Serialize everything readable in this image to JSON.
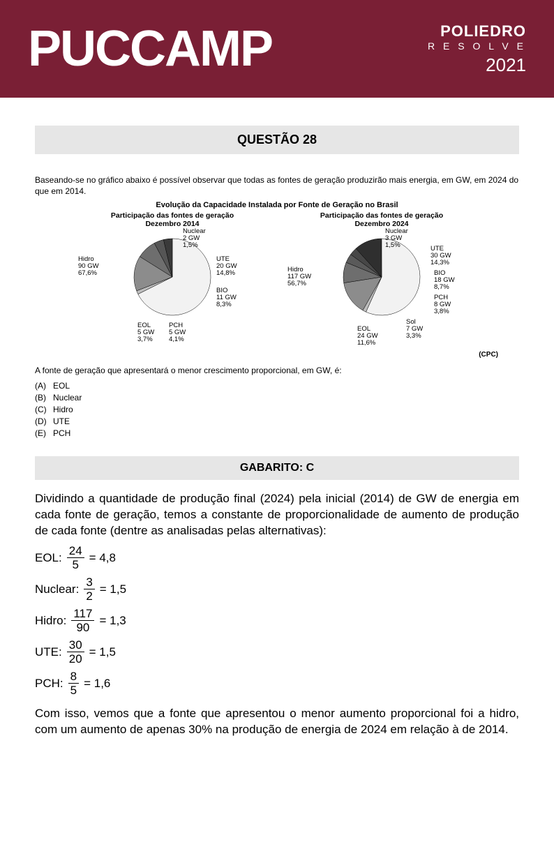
{
  "header": {
    "main_logo": "PUCCAMP",
    "side_top": "POLIEDRO",
    "side_mid": "R E S O L V E",
    "side_year": "2021",
    "bg_color": "#7a1f35"
  },
  "question": {
    "bar_label": "QUESTÃO 28",
    "intro": "Baseando-se no gráfico abaixo é possível observar que todas as fontes de geração produzirão mais energia, em GW, em 2024 do que em 2014.",
    "chart_main_title": "Evolução da Capacidade Instalada por Fonte de Geração no Brasil",
    "sub_question": "A fonte de geração que apresentará o menor crescimento proporcional, em GW, é:",
    "source": "(CPC)",
    "options": [
      {
        "letter": "(A)",
        "text": "EOL"
      },
      {
        "letter": "(B)",
        "text": "Nuclear"
      },
      {
        "letter": "(C)",
        "text": "Hidro"
      },
      {
        "letter": "(D)",
        "text": "UTE"
      },
      {
        "letter": "(E)",
        "text": "PCH"
      }
    ]
  },
  "chart_2014": {
    "subtitle_l1": "Participação das fontes de geração",
    "subtitle_l2": "Dezembro 2014",
    "slices": [
      {
        "name": "Hidro",
        "gw": 90,
        "pct": 67.6,
        "color": "#f2f2f2"
      },
      {
        "name": "Nuclear",
        "gw": 2,
        "pct": 1.5,
        "color": "#bdbdbd"
      },
      {
        "name": "UTE",
        "gw": 20,
        "pct": 14.8,
        "color": "#8c8c8c"
      },
      {
        "name": "BIO",
        "gw": 11,
        "pct": 8.3,
        "color": "#6e6e6e"
      },
      {
        "name": "PCH",
        "gw": 5,
        "pct": 4.1,
        "color": "#555555"
      },
      {
        "name": "EOL",
        "gw": 5,
        "pct": 3.7,
        "color": "#3a3a3a"
      }
    ],
    "labels": {
      "hidro": "Hidro\n90 GW\n67,6%",
      "nuclear": "Nuclear\n2 GW\n1,5%",
      "ute": "UTE\n20 GW\n14,8%",
      "bio": "BIO\n11 GW\n8,3%",
      "pch": "PCH\n5 GW\n4,1%",
      "eol": "EOL\n5 GW\n3,7%"
    }
  },
  "chart_2024": {
    "subtitle_l1": "Participação das fontes de geração",
    "subtitle_l2": "Dezembro 2024",
    "slices": [
      {
        "name": "Hidro",
        "gw": 117,
        "pct": 56.7,
        "color": "#f2f2f2"
      },
      {
        "name": "Nuclear",
        "gw": 3,
        "pct": 1.5,
        "color": "#bdbdbd"
      },
      {
        "name": "UTE",
        "gw": 30,
        "pct": 14.3,
        "color": "#8c8c8c"
      },
      {
        "name": "BIO",
        "gw": 18,
        "pct": 8.7,
        "color": "#6e6e6e"
      },
      {
        "name": "PCH",
        "gw": 8,
        "pct": 3.8,
        "color": "#5a5a5a"
      },
      {
        "name": "Sol",
        "gw": 7,
        "pct": 3.3,
        "color": "#474747"
      },
      {
        "name": "EOL",
        "gw": 24,
        "pct": 11.6,
        "color": "#2f2f2f"
      }
    ],
    "labels": {
      "hidro": "Hidro\n117 GW\n56,7%",
      "nuclear": "Nuclear\n3 GW\n1,5%",
      "ute": "UTE\n30 GW\n14,3%",
      "bio": "BIO\n18 GW\n8,7%",
      "pch": "PCH\n8 GW\n3,8%",
      "sol": "Sol\n7 GW\n3,3%",
      "eol": "EOL\n24 GW\n11,6%"
    }
  },
  "answer": {
    "bar_label": "GABARITO: C",
    "para1": "Dividindo a quantidade de produção final (2024) pela inicial (2014) de GW de energia em cada fonte de geração, temos a constante de proporcionalidade de aumento de produção de cada fonte (dentre as analisadas pelas alternativas):",
    "calcs": [
      {
        "label": "EOL:",
        "num": "24",
        "den": "5",
        "res": "= 4,8"
      },
      {
        "label": "Nuclear:",
        "num": "3",
        "den": "2",
        "res": "= 1,5"
      },
      {
        "label": "Hidro:",
        "num": "117",
        "den": "90",
        "res": "= 1,3"
      },
      {
        "label": "UTE:",
        "num": "30",
        "den": "20",
        "res": "= 1,5"
      },
      {
        "label": "PCH:",
        "num": "8",
        "den": "5",
        "res": "= 1,6"
      }
    ],
    "para2": "Com isso, vemos que a fonte que apresentou o menor aumento proporcional foi a hidro, com um aumento de apenas 30% na produção de energia de 2024 em relação à de 2014."
  }
}
